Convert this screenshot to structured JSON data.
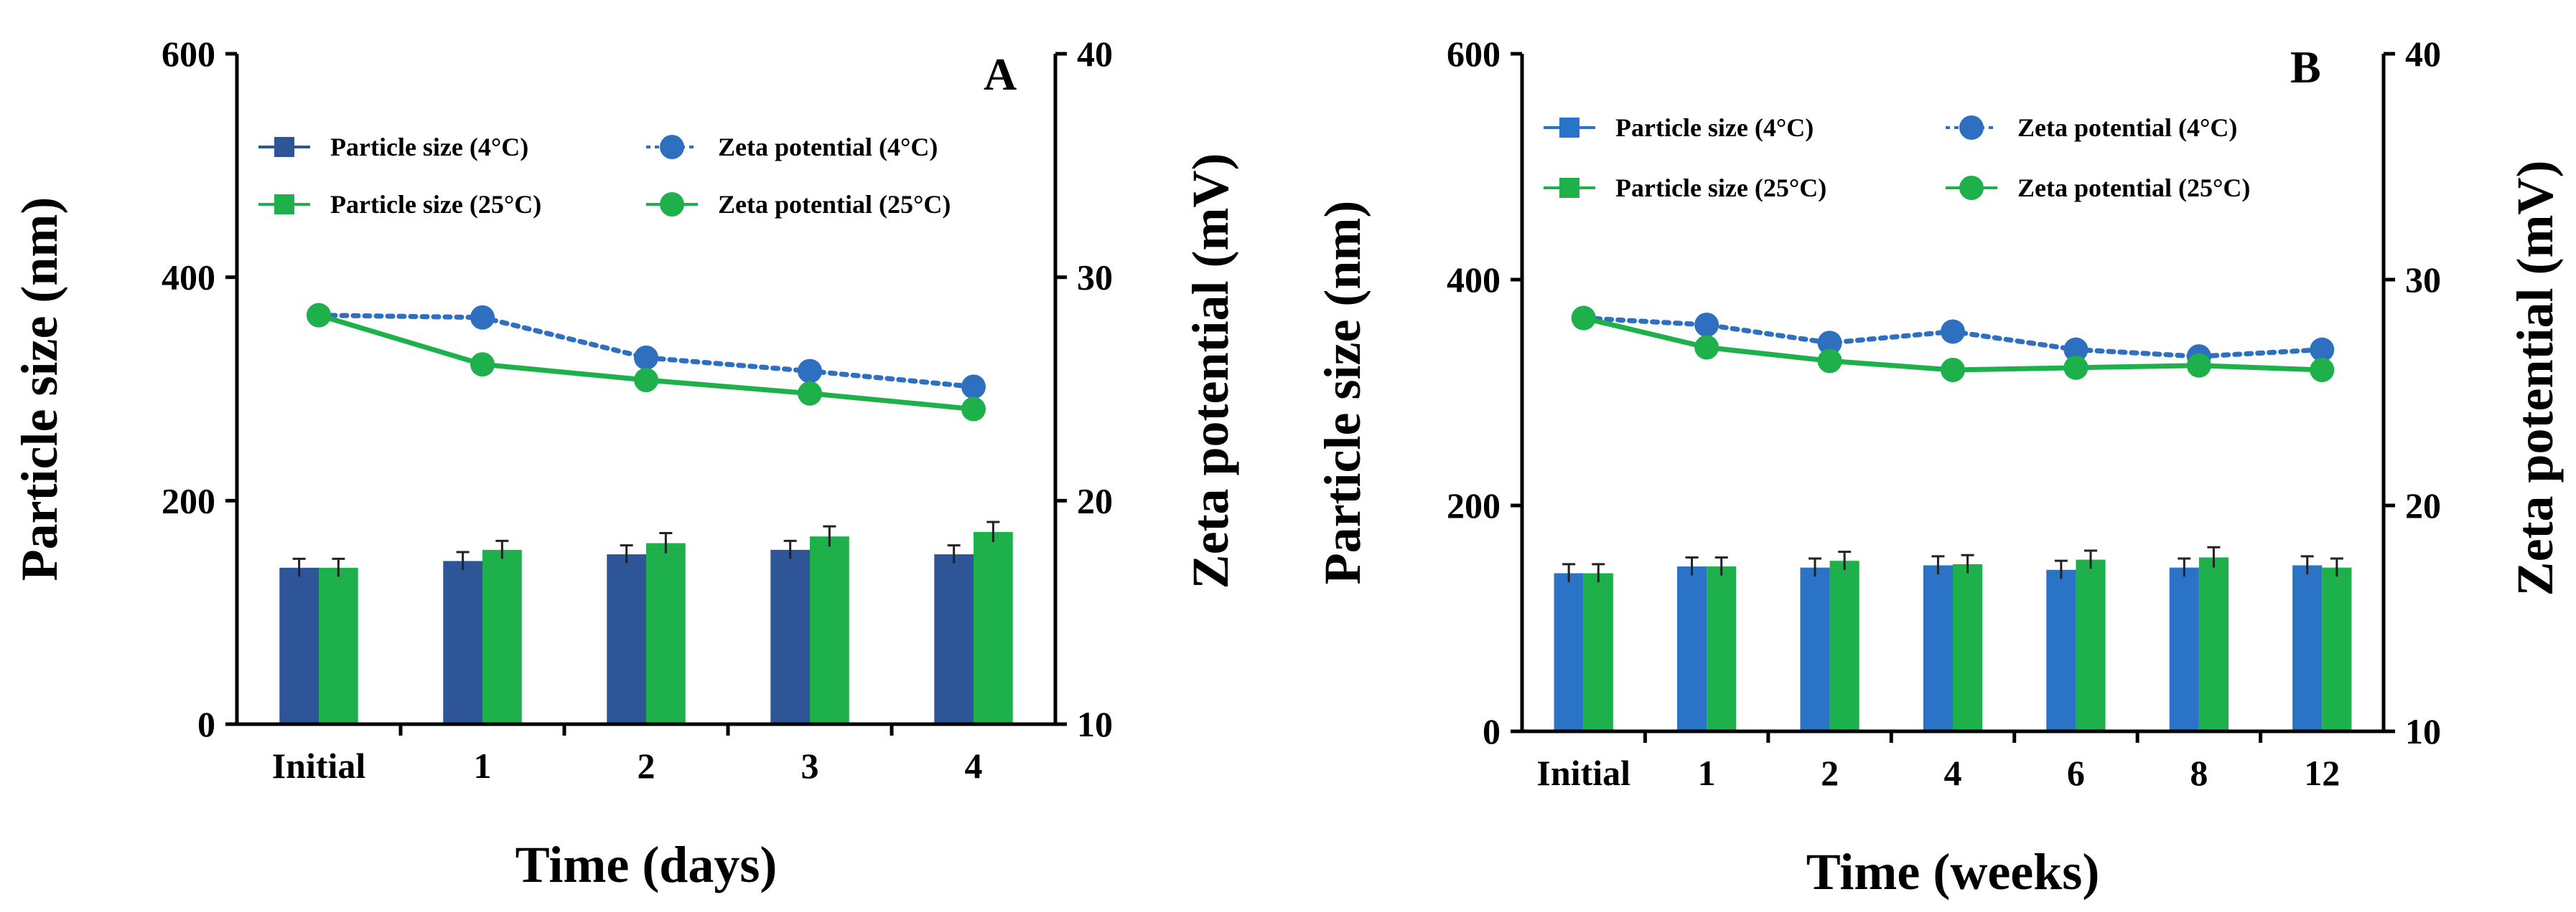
{
  "chart_data": [
    {
      "panel": "A",
      "type": "bar",
      "xlabel": "Time (days)",
      "ylabel": "Particle size (nm)",
      "y2label": "Zeta potential (mV)",
      "categories": [
        "Initial",
        "1",
        "2",
        "3",
        "4"
      ],
      "ylim": [
        0,
        600
      ],
      "yticks": [
        "0",
        "200",
        "400",
        "600"
      ],
      "y2lim": [
        10,
        40
      ],
      "y2ticks": [
        "10",
        "20",
        "30",
        "40"
      ],
      "series": [
        {
          "name": "Particle size (4°C)",
          "kind": "bar",
          "color": "#2E5597",
          "values": [
            140,
            146,
            152,
            156,
            152
          ],
          "errors": [
            8,
            8,
            8,
            8,
            8
          ]
        },
        {
          "name": "Particle size (25°C)",
          "kind": "bar",
          "color": "#1EB04B",
          "values": [
            140,
            156,
            162,
            168,
            172
          ],
          "errors": [
            8,
            8,
            9,
            9,
            9
          ]
        },
        {
          "name": "Zeta potential (4°C)",
          "kind": "line",
          "style": "dotted",
          "color": "#2E6FBF",
          "values": [
            28.3,
            28.2,
            26.4,
            25.8,
            25.1
          ]
        },
        {
          "name": "Zeta potential (25°C)",
          "kind": "line",
          "style": "solid",
          "color": "#1EB04B",
          "values": [
            28.3,
            26.1,
            25.4,
            24.8,
            24.1
          ]
        }
      ]
    },
    {
      "panel": "B",
      "type": "bar",
      "xlabel": "Time (weeks)",
      "ylabel": "Particle size (nm)",
      "y2label": "Zeta potential (mV)",
      "categories": [
        "Initial",
        "1",
        "2",
        "4",
        "6",
        "8",
        "12"
      ],
      "ylim": [
        0,
        600
      ],
      "yticks": [
        "0",
        "200",
        "400",
        "600"
      ],
      "y2lim": [
        10,
        40
      ],
      "y2ticks": [
        "10",
        "20",
        "30",
        "40"
      ],
      "series": [
        {
          "name": "Particle size (4°C)",
          "kind": "bar",
          "color": "#2A73C6",
          "values": [
            140,
            146,
            145,
            147,
            143,
            145,
            147
          ],
          "errors": [
            8,
            8,
            8,
            8,
            8,
            8,
            8
          ]
        },
        {
          "name": "Particle size (25°C)",
          "kind": "bar",
          "color": "#1EB04B",
          "values": [
            140,
            146,
            151,
            148,
            152,
            154,
            145
          ],
          "errors": [
            8,
            8,
            8,
            8,
            8,
            9,
            8
          ]
        },
        {
          "name": "Zeta potential (4°C)",
          "kind": "line",
          "style": "dotted",
          "color": "#2E6FBF",
          "values": [
            28.3,
            28.0,
            27.2,
            27.7,
            26.9,
            26.6,
            26.9
          ]
        },
        {
          "name": "Zeta potential (25°C)",
          "kind": "line",
          "style": "solid",
          "color": "#1EB04B",
          "values": [
            28.3,
            27.0,
            26.4,
            26.0,
            26.1,
            26.2,
            26.0
          ]
        }
      ]
    }
  ]
}
